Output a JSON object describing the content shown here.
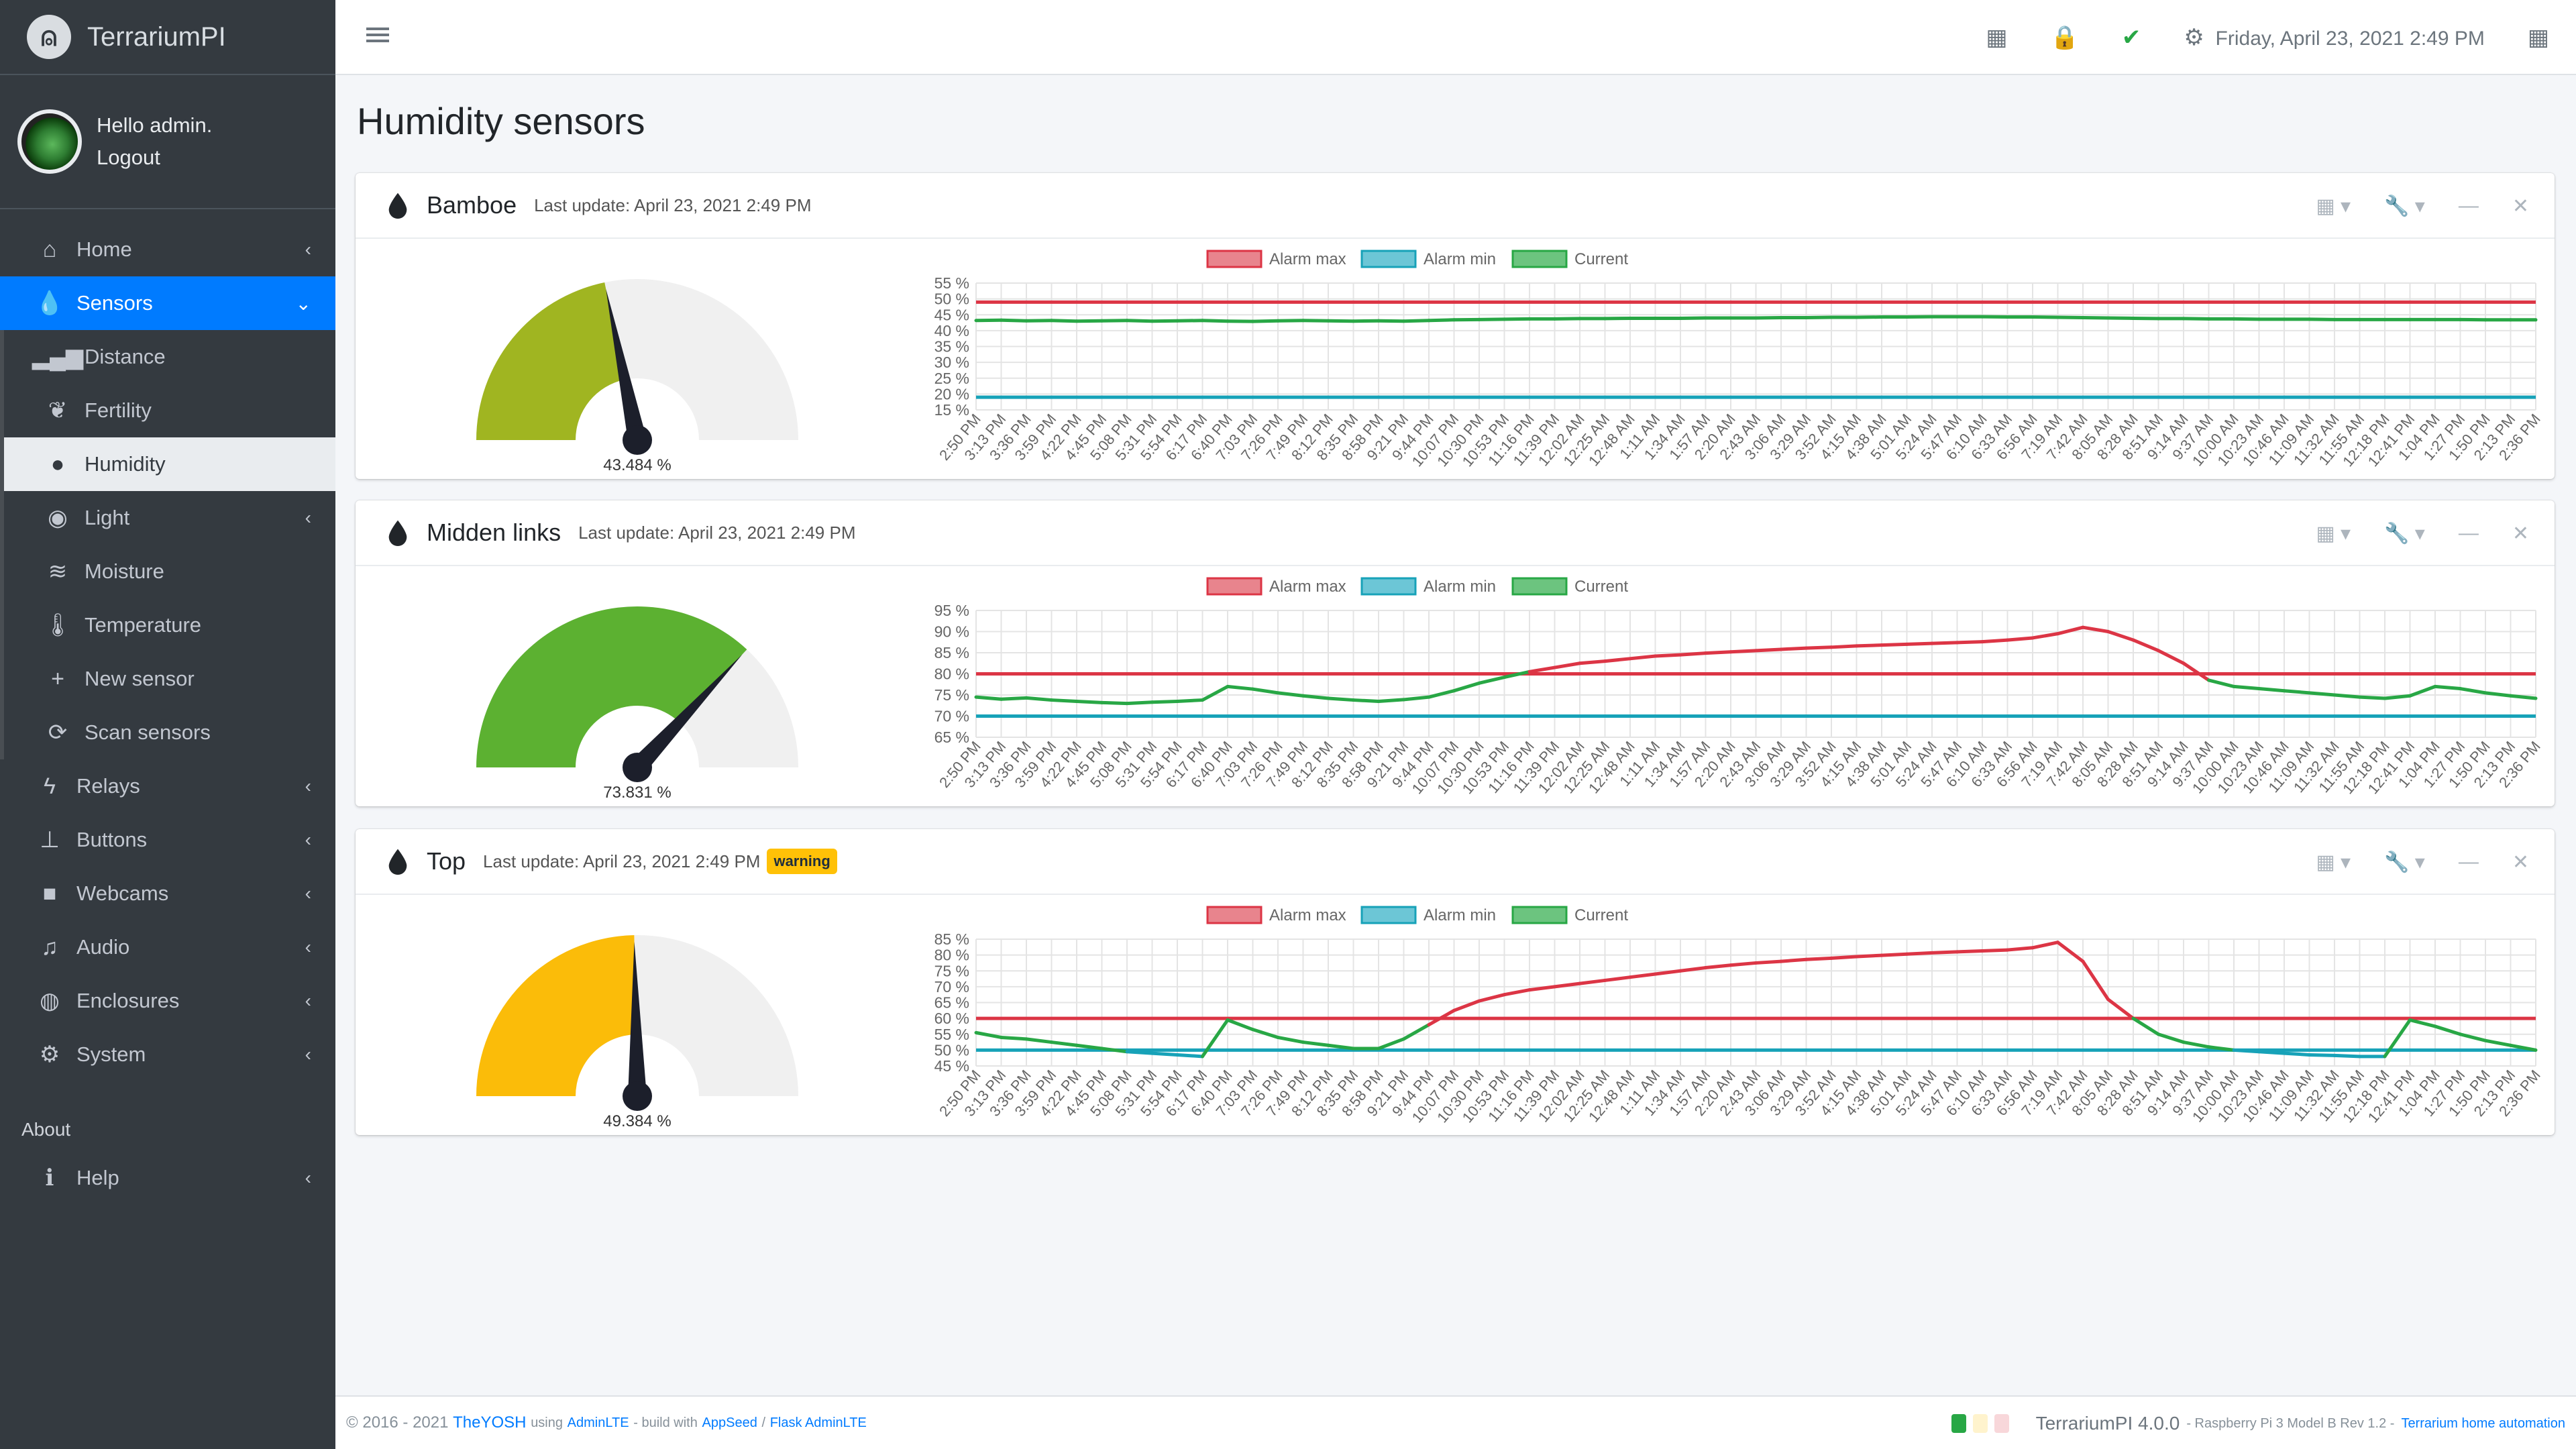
{
  "app": {
    "brand": "TerrariumPI",
    "greeting": "Hello admin.",
    "logout": "Logout"
  },
  "sidebar": {
    "items": [
      {
        "label": "Home",
        "icon": "home-icon"
      },
      {
        "label": "Sensors",
        "icon": "drop-icon"
      },
      {
        "label": "Distance",
        "icon": "signal-icon"
      },
      {
        "label": "Fertility",
        "icon": "seedling-icon"
      },
      {
        "label": "Humidity",
        "icon": "drop-icon"
      },
      {
        "label": "Light",
        "icon": "bulb-icon"
      },
      {
        "label": "Moisture",
        "icon": "water-icon"
      },
      {
        "label": "Temperature",
        "icon": "thermometer-icon"
      },
      {
        "label": "New sensor",
        "icon": "plus-icon"
      },
      {
        "label": "Scan sensors",
        "icon": "sync-icon"
      },
      {
        "label": "Relays",
        "icon": "bolt-icon"
      },
      {
        "label": "Buttons",
        "icon": "push-pin-icon"
      },
      {
        "label": "Webcams",
        "icon": "video-icon"
      },
      {
        "label": "Audio",
        "icon": "music-icon"
      },
      {
        "label": "Enclosures",
        "icon": "globe-icon"
      },
      {
        "label": "System",
        "icon": "gear-icon"
      }
    ],
    "about_header": "About",
    "help": "Help"
  },
  "topbar": {
    "datetime": "Friday, April 23, 2021 2:49 PM"
  },
  "page_title": "Humidity sensors",
  "legend": {
    "alarm_max": "Alarm max",
    "alarm_min": "Alarm min",
    "current": "Current"
  },
  "x_labels": [
    "2:50 PM",
    "3:13 PM",
    "3:36 PM",
    "3:59 PM",
    "4:22 PM",
    "4:45 PM",
    "5:08 PM",
    "5:31 PM",
    "5:54 PM",
    "6:17 PM",
    "6:40 PM",
    "7:03 PM",
    "7:26 PM",
    "7:49 PM",
    "8:12 PM",
    "8:35 PM",
    "8:58 PM",
    "9:21 PM",
    "9:44 PM",
    "10:07 PM",
    "10:30 PM",
    "10:53 PM",
    "11:16 PM",
    "11:39 PM",
    "12:02 AM",
    "12:25 AM",
    "12:48 AM",
    "1:11 AM",
    "1:34 AM",
    "1:57 AM",
    "2:20 AM",
    "2:43 AM",
    "3:06 AM",
    "3:29 AM",
    "3:52 AM",
    "4:15 AM",
    "4:38 AM",
    "5:01 AM",
    "5:24 AM",
    "5:47 AM",
    "6:10 AM",
    "6:33 AM",
    "6:56 AM",
    "7:19 AM",
    "7:42 AM",
    "8:05 AM",
    "8:28 AM",
    "8:51 AM",
    "9:14 AM",
    "9:37 AM",
    "10:00 AM",
    "10:23 AM",
    "10:46 AM",
    "11:09 AM",
    "11:32 AM",
    "11:55 AM",
    "12:18 PM",
    "12:41 PM",
    "1:04 PM",
    "1:27 PM",
    "1:50 PM",
    "2:13 PM",
    "2:36 PM"
  ],
  "cards": [
    {
      "title": "Bamboe",
      "updated": "Last update: April 23, 2021 2:49 PM",
      "badge": "",
      "gauge_value": 43.484,
      "gauge_label": "43.484 %",
      "gauge_color": "#a0b521",
      "chart_data": {
        "type": "line",
        "ylim": [
          15,
          55
        ],
        "yticks": [
          "55 %",
          "50 %",
          "45 %",
          "40 %",
          "35 %",
          "30 %",
          "25 %",
          "20 %",
          "15 %"
        ],
        "alarm_max": 49,
        "alarm_min": 19,
        "current": [
          43.2,
          43.3,
          43.1,
          43.2,
          43.0,
          43.1,
          43.2,
          43.0,
          43.1,
          43.2,
          43.0,
          42.9,
          43.1,
          43.2,
          43.1,
          43.0,
          43.1,
          43.0,
          43.2,
          43.4,
          43.5,
          43.6,
          43.7,
          43.7,
          43.8,
          43.8,
          43.9,
          43.9,
          43.9,
          44.0,
          44.0,
          44.0,
          44.1,
          44.1,
          44.2,
          44.2,
          44.3,
          44.3,
          44.4,
          44.4,
          44.4,
          44.3,
          44.3,
          44.2,
          44.1,
          44.0,
          43.9,
          43.8,
          43.8,
          43.7,
          43.7,
          43.6,
          43.6,
          43.6,
          43.5,
          43.5,
          43.5,
          43.5,
          43.5,
          43.5,
          43.4,
          43.4,
          43.4
        ]
      }
    },
    {
      "title": "Midden links",
      "updated": "Last update: April 23, 2021 2:49 PM",
      "badge": "",
      "gauge_value": 73.831,
      "gauge_label": "73.831 %",
      "gauge_color": "#5cb131",
      "chart_data": {
        "type": "line",
        "ylim": [
          65,
          95
        ],
        "yticks": [
          "95 %",
          "90 %",
          "85 %",
          "80 %",
          "75 %",
          "70 %",
          "65 %"
        ],
        "alarm_max": 80,
        "alarm_min": 70,
        "current": [
          74.5,
          74.0,
          74.3,
          73.8,
          73.5,
          73.2,
          73.0,
          73.3,
          73.5,
          73.8,
          77.0,
          76.4,
          75.5,
          74.8,
          74.2,
          73.8,
          73.5,
          73.9,
          74.5,
          76.0,
          77.8,
          79.2,
          80.5,
          81.5,
          82.5,
          83.0,
          83.6,
          84.2,
          84.5,
          84.9,
          85.2,
          85.5,
          85.8,
          86.1,
          86.3,
          86.6,
          86.8,
          87.0,
          87.2,
          87.4,
          87.6,
          88.0,
          88.5,
          89.5,
          91.0,
          90.0,
          88.0,
          85.5,
          82.5,
          78.5,
          77.0,
          76.5,
          76.0,
          75.5,
          75.0,
          74.5,
          74.2,
          74.8,
          77.0,
          76.5,
          75.5,
          74.8,
          74.2
        ]
      }
    },
    {
      "title": "Top",
      "updated": "Last update: April 23, 2021 2:49 PM",
      "badge": "warning",
      "gauge_value": 49.384,
      "gauge_label": "49.384 %",
      "gauge_color": "#fbbc09",
      "chart_data": {
        "type": "line",
        "ylim": [
          45,
          85
        ],
        "yticks": [
          "85 %",
          "80 %",
          "75 %",
          "70 %",
          "65 %",
          "60 %",
          "55 %",
          "50 %",
          "45 %"
        ],
        "alarm_max": 60,
        "alarm_min": 50,
        "current": [
          55.5,
          54.0,
          53.5,
          52.5,
          51.5,
          50.5,
          49.5,
          49.0,
          48.5,
          48.0,
          59.5,
          56.5,
          54.0,
          52.5,
          51.5,
          50.5,
          50.5,
          53.5,
          58.0,
          62.5,
          65.5,
          67.5,
          69.0,
          70.0,
          71.0,
          72.0,
          73.0,
          74.0,
          75.0,
          76.0,
          76.8,
          77.5,
          78.0,
          78.6,
          79.0,
          79.5,
          79.9,
          80.3,
          80.7,
          81.0,
          81.3,
          81.6,
          82.3,
          84.0,
          78.0,
          66.0,
          60.0,
          55.0,
          52.5,
          51.0,
          50.0,
          49.5,
          49.0,
          48.5,
          48.3,
          48.0,
          48.0,
          59.5,
          57.5,
          55.0,
          53.0,
          51.5,
          50.0
        ]
      }
    }
  ],
  "footer": {
    "copyright": "© 2016 - 2021",
    "author": "TheYOSH",
    "using": "using",
    "adminlte": "AdminLTE",
    "build": "- build with",
    "appseed": "AppSeed",
    "sep": "/",
    "flask": "Flask AdminLTE",
    "version": "TerrariumPI 4.0.0",
    "device": "- Raspberry Pi 3 Model B Rev 1.2 -",
    "tagline": "Terrarium home automation"
  },
  "colors": {
    "primary": "#007bff",
    "alarm_max": "#dc3545",
    "alarm_min": "#17a2b8",
    "current": "#28a745",
    "warning": "#ffc107"
  }
}
